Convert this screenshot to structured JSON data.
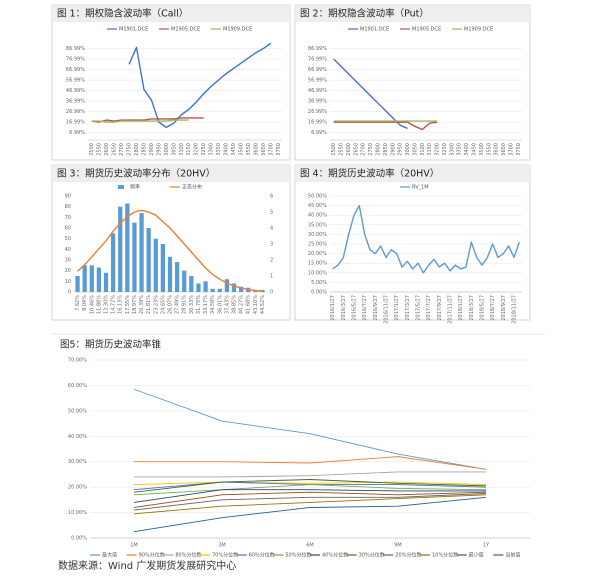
{
  "chart_data": [
    {
      "type": "line",
      "title": "图 1：期权隐含波动率（Call）",
      "categories": [
        "2500",
        "2550",
        "2600",
        "2650",
        "2700",
        "2750",
        "2800",
        "2850",
        "2900",
        "2950",
        "3000",
        "3050",
        "3100",
        "3150",
        "3200",
        "3250",
        "3300",
        "3350",
        "3400",
        "3450",
        "3500",
        "3550",
        "3600",
        "3650",
        "3700",
        "3750"
      ],
      "series": [
        {
          "name": "M1901.DCE",
          "color": "#4472c4",
          "values": [
            null,
            null,
            null,
            null,
            null,
            72,
            88,
            48,
            38,
            17,
            12,
            16,
            24,
            29,
            36,
            44,
            51,
            57,
            63,
            68,
            73,
            78,
            83,
            87,
            92,
            null
          ]
        },
        {
          "name": "M1905.DCE",
          "color": "#c0504d",
          "values": [
            18,
            17,
            19,
            18,
            19,
            19,
            19,
            19,
            20,
            20,
            20,
            20,
            21,
            21,
            21,
            21,
            null,
            null,
            null,
            null,
            null,
            null,
            null,
            null,
            null,
            null
          ]
        },
        {
          "name": "M1909.DCE",
          "color": "#9bbb59",
          "values": [
            18,
            18,
            17,
            17,
            18,
            18,
            18,
            18,
            18,
            18,
            18,
            19,
            19,
            19,
            null,
            null,
            null,
            null,
            null,
            null,
            null,
            null,
            null,
            null,
            null,
            null
          ]
        }
      ],
      "ylim": [
        0,
        96.99
      ],
      "yticks": [
        {
          "value": 6.99,
          "label": "6.99%"
        },
        {
          "value": 16.99,
          "label": "16.99%"
        },
        {
          "value": 26.99,
          "label": "26.99%"
        },
        {
          "value": 36.99,
          "label": "36.99%"
        },
        {
          "value": 46.99,
          "label": "46.99%"
        },
        {
          "value": 56.99,
          "label": "56.99%"
        },
        {
          "value": 66.99,
          "label": "66.99%"
        },
        {
          "value": 76.99,
          "label": "76.99%"
        },
        {
          "value": 86.99,
          "label": "86.99%"
        }
      ],
      "grid": true,
      "legend": "top",
      "x_label_rotation": -90
    },
    {
      "type": "line",
      "title": "图 2：期权隐含波动率（Put）",
      "categories": [
        "2500",
        "2550",
        "2600",
        "2650",
        "2700",
        "2750",
        "2800",
        "2850",
        "2900",
        "2950",
        "3000",
        "3050",
        "3100",
        "3150",
        "3200",
        "3250",
        "3300",
        "3350",
        "3400",
        "3450",
        "3500",
        "3550",
        "3600",
        "3650",
        "3700",
        "3750"
      ],
      "series": [
        {
          "name": "M1901.DCE",
          "color": "#4472c4",
          "values": [
            77,
            70,
            63,
            56,
            49,
            42,
            35,
            28,
            21,
            14,
            11,
            null,
            null,
            null,
            null,
            null,
            null,
            null,
            null,
            null,
            null,
            null,
            null,
            null,
            null,
            null
          ]
        },
        {
          "name": "M1905.DCE",
          "color": "#c0504d",
          "values": [
            17,
            17,
            17,
            17,
            17,
            17,
            17,
            17,
            17,
            17,
            17,
            13,
            10,
            16,
            17,
            null,
            null,
            null,
            null,
            null,
            null,
            null,
            null,
            null,
            null,
            null
          ]
        },
        {
          "name": "M1909.DCE",
          "color": "#9bbb59",
          "values": [
            18,
            18,
            18,
            18,
            18,
            18,
            18,
            18,
            18,
            18,
            18,
            18,
            18,
            18,
            18,
            null,
            null,
            null,
            null,
            null,
            null,
            null,
            null,
            null,
            null,
            null
          ]
        }
      ],
      "ylim": [
        0,
        96.99
      ],
      "yticks": [
        {
          "value": 6.99,
          "label": "6.99%"
        },
        {
          "value": 16.99,
          "label": "16.99%"
        },
        {
          "value": 26.99,
          "label": "26.99%"
        },
        {
          "value": 36.99,
          "label": "36.99%"
        },
        {
          "value": 46.99,
          "label": "46.99%"
        },
        {
          "value": 56.99,
          "label": "56.99%"
        },
        {
          "value": 66.99,
          "label": "66.99%"
        },
        {
          "value": 76.99,
          "label": "76.99%"
        },
        {
          "value": 86.99,
          "label": "86.99%"
        }
      ],
      "grid": true,
      "legend": "top",
      "x_label_rotation": -90
    },
    {
      "type": "bar",
      "title": "图 3：期货历史波动率分布（20HV）",
      "categories": [
        "7.62%",
        "9.04%",
        "10.46%",
        "11.88%",
        "13.30%",
        "14.72%",
        "16.13%",
        "17.55%",
        "18.97%",
        "20.39%",
        "21.81%",
        "23.23%",
        "24.65%",
        "26.07%",
        "27.49%",
        "28.91%",
        "30.33%",
        "31.75%",
        "33.17%",
        "34.59%",
        "36.01%",
        "37.43%",
        "38.85%",
        "40.27%",
        "41.68%",
        "43.10%",
        "44.52%"
      ],
      "series": [
        {
          "name": "频率",
          "color": "#5b9bd5",
          "type": "bar",
          "values": [
            15,
            25,
            25,
            23,
            18,
            55,
            80,
            83,
            65,
            74,
            60,
            50,
            45,
            33,
            28,
            20,
            15,
            8,
            10,
            3,
            3,
            12,
            8,
            5,
            4,
            2,
            2
          ]
        },
        {
          "name": "正态分布",
          "color": "#ed7d31",
          "type": "line",
          "axis": "y2",
          "values": [
            1.3,
            1.7,
            2.2,
            2.7,
            3.2,
            3.8,
            4.3,
            4.7,
            5.0,
            5.1,
            5.0,
            4.8,
            4.4,
            4.0,
            3.5,
            3.0,
            2.5,
            2.0,
            1.5,
            1.1,
            0.8,
            0.55,
            0.38,
            0.25,
            0.15,
            0.1,
            0.06
          ]
        }
      ],
      "ylim": [
        0,
        90
      ],
      "yticks": [
        0,
        10,
        20,
        30,
        40,
        50,
        60,
        70,
        80,
        90
      ],
      "y2lim": [
        0,
        6
      ],
      "y2ticks": [
        0,
        1,
        2,
        3,
        4,
        5,
        6
      ],
      "grid": false,
      "legend": "top",
      "x_label_rotation": -90
    },
    {
      "type": "line",
      "title": "图 4：期货历史波动率（20HV）",
      "categories": [
        "2016/1/27",
        null,
        "2016/3/27",
        null,
        "2016/5/27",
        null,
        "2016/7/27",
        null,
        "2016/9/27",
        null,
        "2016/11/27",
        null,
        "2017/1/27",
        null,
        "2017/3/27",
        null,
        "2017/5/27",
        null,
        "2017/7/27",
        null,
        "2017/9/27",
        null,
        "2017/11/27",
        null,
        "2018/1/27",
        null,
        "2018/3/27",
        null,
        "2018/5/27",
        null,
        "2018/7/27",
        null,
        "2018/9/27",
        null,
        "2018/11/27",
        null
      ],
      "series": [
        {
          "name": "RV_1M",
          "color": "#5b9bd5",
          "values": [
            12,
            14,
            18,
            30,
            40,
            45,
            30,
            22,
            20,
            24,
            18,
            22,
            20,
            13,
            16,
            12,
            15,
            10,
            14,
            17,
            13,
            15,
            11,
            14,
            12,
            13,
            26,
            18,
            14,
            18,
            25,
            18,
            20,
            24,
            18,
            26
          ]
        }
      ],
      "ylim": [
        0,
        50
      ],
      "yticks": [
        {
          "value": 0,
          "label": "0.00%"
        },
        {
          "value": 5,
          "label": "5.00%"
        },
        {
          "value": 10,
          "label": "10.00%"
        },
        {
          "value": 15,
          "label": "15.00%"
        },
        {
          "value": 20,
          "label": "20.00%"
        },
        {
          "value": 25,
          "label": "25.00%"
        },
        {
          "value": 30,
          "label": "30.00%"
        },
        {
          "value": 35,
          "label": "35.00%"
        },
        {
          "value": 40,
          "label": "40.00%"
        },
        {
          "value": 45,
          "label": "45.00%"
        },
        {
          "value": 50,
          "label": "50.00%"
        }
      ],
      "grid": true,
      "legend": "top",
      "x_label_rotation": -90
    },
    {
      "type": "line",
      "title": "图5：期货历史波动率锥",
      "categories": [
        "1M",
        "3M",
        "6M",
        "9M",
        "1Y"
      ],
      "series": [
        {
          "name": "最大值",
          "color": "#5b9bd5",
          "values": [
            58.5,
            46,
            41,
            33,
            27
          ]
        },
        {
          "name": "90%分位数",
          "color": "#ed7d31",
          "values": [
            30,
            30,
            29.5,
            32,
            27
          ]
        },
        {
          "name": "80%分位数",
          "color": "#a5a5a5",
          "values": [
            24,
            24,
            24.5,
            26,
            26
          ]
        },
        {
          "name": "70%分位数",
          "color": "#ffc000",
          "values": [
            21,
            22,
            21.5,
            22,
            21
          ]
        },
        {
          "name": "60%分位数",
          "color": "#4472c4",
          "values": [
            19,
            22,
            21,
            21,
            20
          ]
        },
        {
          "name": "50%分位数",
          "color": "#70ad47",
          "values": [
            17,
            19,
            21,
            19.5,
            19
          ]
        },
        {
          "name": "40%分位数",
          "color": "#264478",
          "values": [
            14,
            19,
            19,
            18.5,
            18.5
          ]
        },
        {
          "name": "30%分位数",
          "color": "#9e480e",
          "values": [
            12,
            17,
            18,
            17,
            18
          ]
        },
        {
          "name": "20%分位数",
          "color": "#636363",
          "values": [
            11,
            15,
            16,
            16,
            17.5
          ]
        },
        {
          "name": "10%分位数",
          "color": "#997300",
          "values": [
            9.5,
            12.5,
            14,
            15.5,
            17
          ]
        },
        {
          "name": "最小值",
          "color": "#255e91",
          "values": [
            2.5,
            8,
            12,
            12.5,
            16
          ]
        },
        {
          "name": "当前值",
          "color": "#43682b",
          "values": [
            18,
            22,
            23,
            21.5,
            20.5
          ]
        }
      ],
      "ylim": [
        0,
        70
      ],
      "yticks": [
        {
          "value": 0,
          "label": "0.00%"
        },
        {
          "value": 10,
          "label": "10.00%"
        },
        {
          "value": 20,
          "label": "20.00%"
        },
        {
          "value": 30,
          "label": "30.00%"
        },
        {
          "value": 40,
          "label": "40.00%"
        },
        {
          "value": 50,
          "label": "50.00%"
        },
        {
          "value": 60,
          "label": "60.00%"
        },
        {
          "value": 70,
          "label": "70.00%"
        }
      ],
      "grid": true,
      "legend": "bottom",
      "x_label_rotation": 0
    }
  ],
  "source": "数据来源：Wind 广发期货发展研究中心"
}
